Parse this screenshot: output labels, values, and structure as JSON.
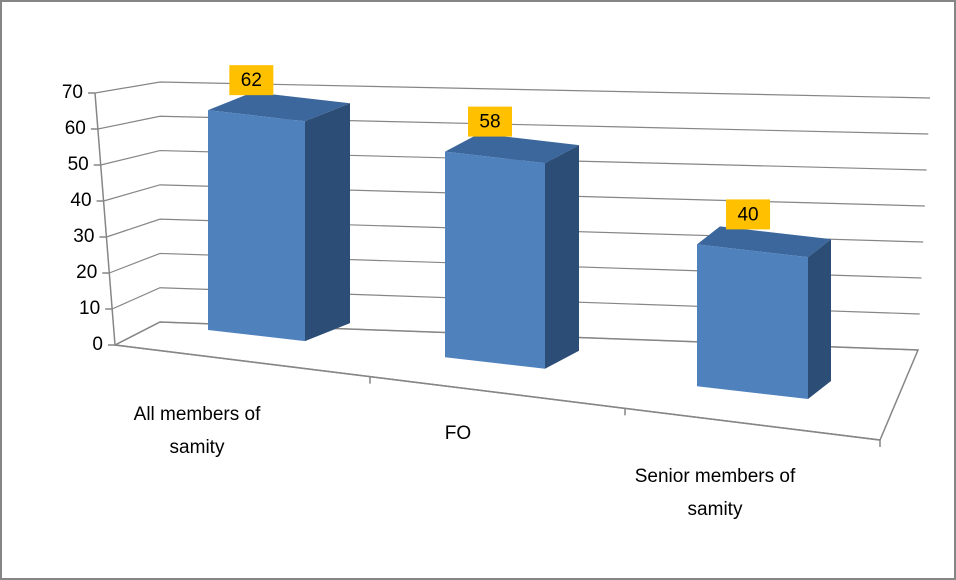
{
  "chart_data": {
    "type": "bar3d",
    "categories": [
      "All members of samity",
      "FO",
      "Senior members of samity"
    ],
    "values": [
      62,
      58,
      40
    ],
    "color": "#4f81bd",
    "label_color": "#ffc000",
    "ylim": [
      0,
      70
    ],
    "yticks": [
      0,
      10,
      20,
      30,
      40,
      50,
      60,
      70
    ],
    "grid": true
  }
}
